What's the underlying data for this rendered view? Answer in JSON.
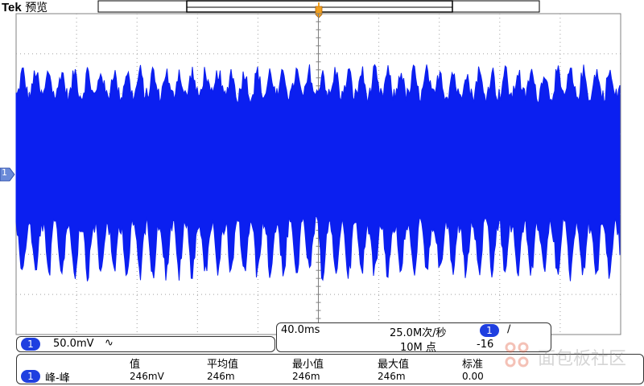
{
  "header": {
    "brand": "Tek",
    "mode": "预览"
  },
  "channel_panel": {
    "channel_number": "1",
    "scale": "50.0mV",
    "coupling_symbol": "∿"
  },
  "timebase_panel": {
    "time_per_div": "40.0ms",
    "sample_rate": "25.0M次/秒",
    "record_length": "10M 点",
    "trigger_channel": "1",
    "trigger_slope_symbol": "∕",
    "trigger_level_partial": "-16"
  },
  "measurement_panel": {
    "headers": [
      "值",
      "平均值",
      "最小值",
      "最大值",
      "标准"
    ],
    "channel_number": "1",
    "measurement_type": "峰-峰",
    "values": [
      "246mV",
      "246m",
      "246m",
      "246m",
      "0.00"
    ]
  },
  "watermark": {
    "text": "面包板社区"
  },
  "colors": {
    "waveform": "#0b1ff0",
    "badge": "#1f3fe0",
    "trigger_marker": "#f0a020",
    "grid": "#808080"
  }
}
